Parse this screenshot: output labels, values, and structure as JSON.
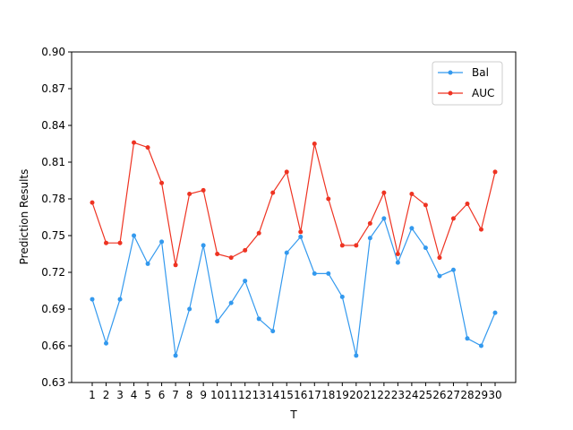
{
  "chart_data": {
    "type": "line",
    "xlabel": "T",
    "ylabel": "Prediction Results",
    "ylim": [
      0.63,
      0.9
    ],
    "yticks": [
      "0.63",
      "0.66",
      "0.69",
      "0.72",
      "0.75",
      "0.78",
      "0.81",
      "0.84",
      "0.87",
      "0.90"
    ],
    "x": [
      1,
      2,
      3,
      4,
      5,
      6,
      7,
      8,
      9,
      10,
      11,
      12,
      13,
      14,
      15,
      16,
      17,
      18,
      19,
      20,
      21,
      22,
      23,
      24,
      25,
      26,
      27,
      28,
      29,
      30
    ],
    "grid": false,
    "legend": "top-right",
    "series": [
      {
        "name": "Bal",
        "color": "#3399ee",
        "values": [
          0.698,
          0.662,
          0.698,
          0.75,
          0.727,
          0.745,
          0.652,
          0.69,
          0.742,
          0.68,
          0.695,
          0.713,
          0.682,
          0.672,
          0.736,
          0.749,
          0.719,
          0.719,
          0.7,
          0.652,
          0.748,
          0.764,
          0.728,
          0.756,
          0.74,
          0.717,
          0.722,
          0.666,
          0.66,
          0.687
        ]
      },
      {
        "name": "AUC",
        "color": "#ee3322",
        "values": [
          0.777,
          0.744,
          0.744,
          0.826,
          0.822,
          0.793,
          0.726,
          0.784,
          0.787,
          0.735,
          0.732,
          0.738,
          0.752,
          0.785,
          0.802,
          0.753,
          0.825,
          0.78,
          0.742,
          0.742,
          0.76,
          0.785,
          0.735,
          0.784,
          0.775,
          0.732,
          0.764,
          0.776,
          0.755,
          0.802
        ]
      }
    ]
  }
}
